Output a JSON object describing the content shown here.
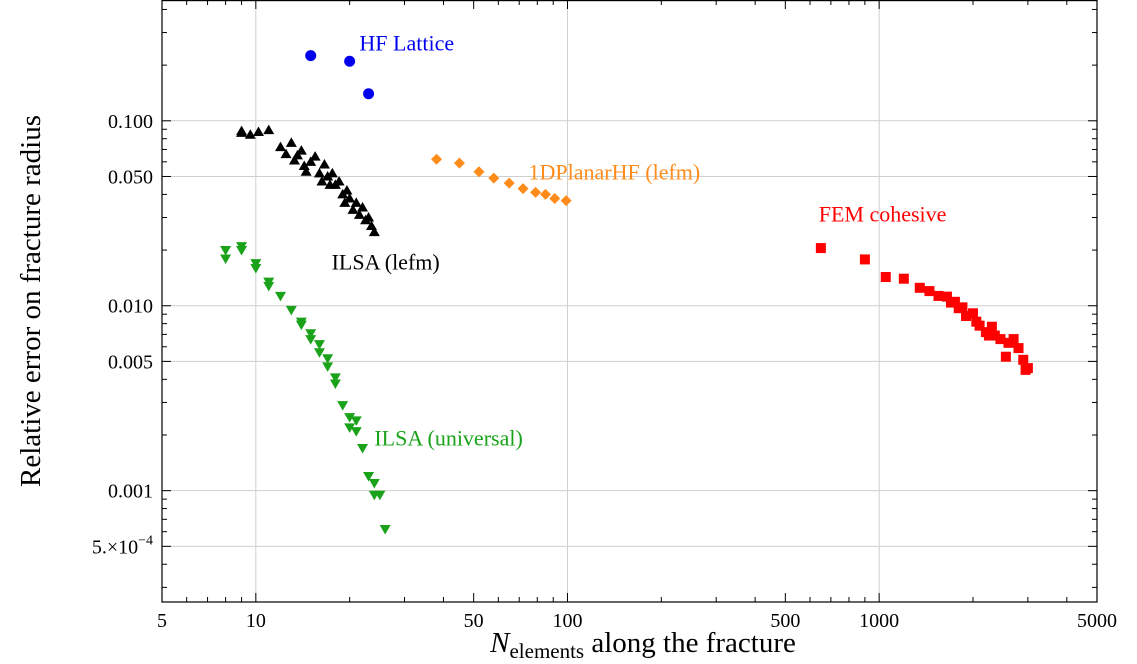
{
  "chart_data": {
    "type": "scatter",
    "xlabel": {
      "main": "N",
      "sub": "elements",
      "rest": " along the fracture"
    },
    "ylabel": "Relative error on fracture radius",
    "x_scale": "log",
    "y_scale": "log",
    "xlim": [
      5,
      5000
    ],
    "ylim": [
      0.00025,
      0.45
    ],
    "grid": true,
    "x_ticks": [
      {
        "value": 5,
        "label": "5"
      },
      {
        "value": 10,
        "label": "10"
      },
      {
        "value": 50,
        "label": "50"
      },
      {
        "value": 100,
        "label": "100"
      },
      {
        "value": 500,
        "label": "500"
      },
      {
        "value": 1000,
        "label": "1000"
      },
      {
        "value": 5000,
        "label": "5000"
      }
    ],
    "x_gridlines": [
      10,
      100,
      1000
    ],
    "y_ticks": [
      {
        "value": 0.1,
        "label": "0.100"
      },
      {
        "value": 0.05,
        "label": "0.050"
      },
      {
        "value": 0.01,
        "label": "0.010"
      },
      {
        "value": 0.005,
        "label": "0.005"
      },
      {
        "value": 0.001,
        "label": "0.001"
      },
      {
        "value": 0.0005,
        "label": "5.×10",
        "exp": "−4"
      }
    ],
    "series": [
      {
        "name": "HF Lattice",
        "color": "#0000ee",
        "marker": "circle",
        "label_anchor": {
          "x": 21.5,
          "y": 0.24
        },
        "x": [
          15,
          20,
          23
        ],
        "y": [
          0.225,
          0.21,
          0.14
        ]
      },
      {
        "name": "ILSA (lefm)",
        "color": "#000000",
        "marker": "triangle-up",
        "label_anchor": {
          "x": 17.5,
          "y": 0.0157
        },
        "x": [
          9,
          9,
          9.6,
          10.2,
          11,
          12,
          12.5,
          13,
          13.3,
          13.6,
          14,
          14.3,
          14.5,
          15,
          15.5,
          16,
          16.3,
          16.6,
          17,
          17.3,
          17.6,
          18,
          18.5,
          19,
          19.3,
          19.6,
          20,
          20.5,
          21,
          21.5,
          22,
          22.5,
          23,
          23.5,
          24
        ],
        "y": [
          0.088,
          0.086,
          0.084,
          0.087,
          0.089,
          0.072,
          0.066,
          0.076,
          0.061,
          0.065,
          0.069,
          0.057,
          0.053,
          0.06,
          0.064,
          0.052,
          0.047,
          0.058,
          0.05,
          0.045,
          0.052,
          0.045,
          0.047,
          0.04,
          0.036,
          0.042,
          0.038,
          0.033,
          0.036,
          0.031,
          0.034,
          0.029,
          0.03,
          0.027,
          0.025
        ]
      },
      {
        "name": "1DPlanarHF (lefm)",
        "color": "#ff8c1a",
        "marker": "diamond",
        "label_anchor": {
          "x": 75,
          "y": 0.048
        },
        "x": [
          38,
          45,
          52,
          58,
          65,
          72,
          79,
          85,
          91,
          99
        ],
        "y": [
          0.062,
          0.059,
          0.053,
          0.049,
          0.046,
          0.043,
          0.041,
          0.04,
          0.038,
          0.037
        ]
      },
      {
        "name": "FEM cohesive",
        "color": "#ff0000",
        "marker": "square",
        "label_anchor": {
          "x": 640,
          "y": 0.0285
        },
        "x": [
          650,
          900,
          1050,
          1200,
          1350,
          1450,
          1550,
          1650,
          1700,
          1750,
          1800,
          1850,
          1900,
          2000,
          2050,
          2100,
          2200,
          2250,
          2300,
          2350,
          2450,
          2550,
          2600,
          2700,
          2800,
          2900,
          2950,
          3000
        ],
        "y": [
          0.0205,
          0.0178,
          0.0143,
          0.014,
          0.0125,
          0.012,
          0.0113,
          0.0112,
          0.0104,
          0.0105,
          0.0097,
          0.0098,
          0.0088,
          0.0091,
          0.0082,
          0.0078,
          0.0072,
          0.0069,
          0.0077,
          0.0069,
          0.0066,
          0.0053,
          0.0063,
          0.0066,
          0.0059,
          0.0051,
          0.0045,
          0.0046
        ]
      },
      {
        "name": "ILSA (universal)",
        "color": "#1aa31a",
        "marker": "triangle-down",
        "label_anchor": {
          "x": 24,
          "y": 0.00175
        },
        "x": [
          8,
          8,
          9,
          9,
          10,
          10,
          11,
          11,
          12,
          13,
          14,
          14,
          15,
          15,
          16,
          16,
          17,
          17,
          18,
          18,
          19,
          20,
          20,
          21,
          21,
          22,
          23,
          24,
          24,
          25,
          26
        ],
        "y": [
          0.02,
          0.018,
          0.021,
          0.02,
          0.017,
          0.016,
          0.0135,
          0.0128,
          0.0113,
          0.0095,
          0.0082,
          0.0079,
          0.0071,
          0.0066,
          0.0062,
          0.0056,
          0.0052,
          0.0047,
          0.0041,
          0.0038,
          0.0029,
          0.0025,
          0.0022,
          0.0024,
          0.0021,
          0.0017,
          0.0012,
          0.0011,
          0.00095,
          0.00095,
          0.00062
        ]
      }
    ]
  }
}
